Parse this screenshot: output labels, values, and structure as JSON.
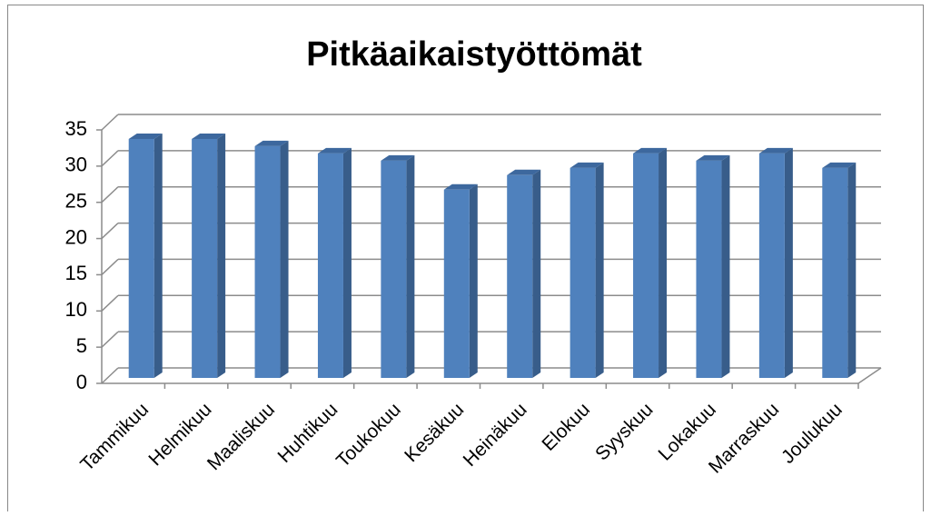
{
  "chart_data": {
    "type": "bar3d",
    "title": "Pitkäaikaistyöttömät",
    "categories": [
      "Tammikuu",
      "Helmikuu",
      "Maaliskuu",
      "Huhtikuu",
      "Toukokuu",
      "Kesäkuu",
      "Heinäkuu",
      "Elokuu",
      "Syyskuu",
      "Lokakuu",
      "Marraskuu",
      "Joulukuu"
    ],
    "values": [
      33,
      33,
      32,
      31,
      30,
      26,
      28,
      29,
      31,
      30,
      31,
      29
    ],
    "color": "#4f81bd",
    "ylim": [
      0,
      35
    ],
    "yticks": [
      0,
      5,
      10,
      15,
      20,
      25,
      30,
      35
    ],
    "grid": true
  }
}
